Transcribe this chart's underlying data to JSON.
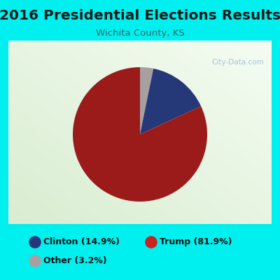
{
  "title": "2016 Presidential Elections Results",
  "subtitle": "Wichita County, KS",
  "labels": [
    "Clinton (14.9%)",
    "Trump (81.9%)",
    "Other (3.2%)"
  ],
  "colors": [
    "#253878",
    "#9b1b1b",
    "#a89fa0"
  ],
  "legend_colors": [
    "#253878",
    "#cc2222",
    "#a89fa0"
  ],
  "bg_outer": "#00f0f0",
  "bg_inner_color": "#e8f2e0",
  "watermark": "City-Data.com",
  "title_fontsize": 14.5,
  "subtitle_fontsize": 9.5,
  "wedge_sizes": [
    3.2,
    14.9,
    81.9
  ],
  "wedge_order_colors": [
    "#a89fa0",
    "#253878",
    "#9b1b1b"
  ],
  "startangle": 90,
  "legend1_labels": [
    "Clinton (14.9%)",
    "Trump (81.9%)"
  ],
  "legend2_labels": [
    "Other (3.2%)"
  ],
  "legend1_colors": [
    "#253878",
    "#cc2222"
  ],
  "legend2_colors": [
    "#a89fa0"
  ]
}
